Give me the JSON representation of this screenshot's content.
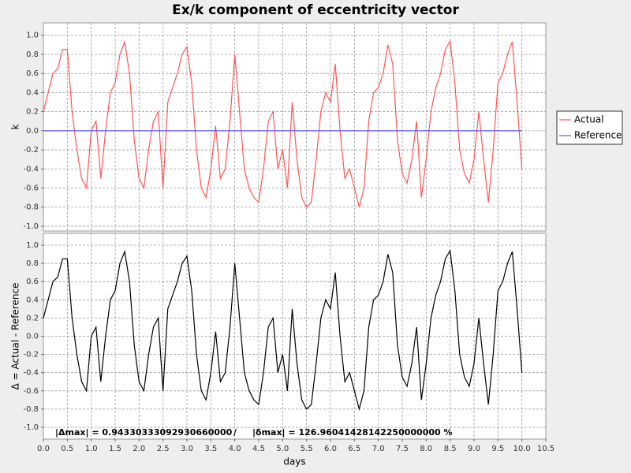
{
  "chart_data": [
    {
      "type": "line",
      "title": "Ex/k component of eccentricity vector",
      "ylabel": "k",
      "x": [
        0,
        0.1,
        0.2,
        0.3,
        0.4,
        0.5,
        0.6,
        0.7,
        0.8,
        0.9,
        1,
        1.1,
        1.2,
        1.3,
        1.4,
        1.5,
        1.6,
        1.7,
        1.8,
        1.9,
        2,
        2.1,
        2.2,
        2.3,
        2.4,
        2.5,
        2.6,
        2.7,
        2.8,
        2.9,
        3,
        3.1,
        3.2,
        3.3,
        3.4,
        3.5,
        3.6,
        3.7,
        3.8,
        3.9,
        4,
        4.1,
        4.2,
        4.3,
        4.4,
        4.5,
        4.6,
        4.7,
        4.8,
        4.9,
        5,
        5.1,
        5.2,
        5.3,
        5.4,
        5.5,
        5.6,
        5.7,
        5.8,
        5.9,
        6,
        6.1,
        6.2,
        6.3,
        6.4,
        6.5,
        6.6,
        6.7,
        6.8,
        6.9,
        7,
        7.1,
        7.2,
        7.3,
        7.4,
        7.5,
        7.6,
        7.7,
        7.8,
        7.9,
        8,
        8.1,
        8.2,
        8.3,
        8.4,
        8.5,
        8.6,
        8.7,
        8.8,
        8.9,
        9,
        9.1,
        9.2,
        9.3,
        9.4,
        9.5,
        9.6,
        9.7,
        9.8,
        9.9,
        10
      ],
      "series": [
        {
          "name": "Actual",
          "color": "#ff5555",
          "values": [
            0.2,
            0.4,
            0.6,
            0.65,
            0.85,
            0.85,
            0.2,
            -0.2,
            -0.5,
            -0.6,
            0.0,
            0.1,
            -0.5,
            0.0,
            0.4,
            0.5,
            0.8,
            0.93,
            0.6,
            -0.1,
            -0.5,
            -0.6,
            -0.2,
            0.1,
            0.2,
            -0.6,
            0.3,
            0.45,
            0.6,
            0.8,
            0.88,
            0.5,
            -0.2,
            -0.6,
            -0.7,
            -0.4,
            0.05,
            -0.5,
            -0.4,
            0.1,
            0.8,
            0.2,
            -0.4,
            -0.6,
            -0.7,
            -0.75,
            -0.4,
            0.1,
            0.2,
            -0.4,
            -0.2,
            -0.6,
            0.3,
            -0.3,
            -0.7,
            -0.8,
            -0.75,
            -0.3,
            0.2,
            0.4,
            0.3,
            0.7,
            0.0,
            -0.5,
            -0.4,
            -0.6,
            -0.8,
            -0.6,
            0.1,
            0.4,
            0.45,
            0.6,
            0.9,
            0.7,
            -0.1,
            -0.45,
            -0.55,
            -0.3,
            0.1,
            -0.7,
            -0.3,
            0.2,
            0.45,
            0.6,
            0.85,
            0.94,
            0.5,
            -0.2,
            -0.45,
            -0.55,
            -0.3,
            0.2,
            -0.3,
            -0.75,
            -0.2,
            0.5,
            0.6,
            0.8,
            0.93,
            0.3,
            -0.4
          ]
        },
        {
          "name": "Reference",
          "color": "#5555ff",
          "values": [
            0,
            0,
            0,
            0,
            0,
            0,
            0,
            0,
            0,
            0,
            0,
            0,
            0,
            0,
            0,
            0,
            0,
            0,
            0,
            0,
            0,
            0,
            0,
            0,
            0,
            0,
            0,
            0,
            0,
            0,
            0,
            0,
            0,
            0,
            0,
            0,
            0,
            0,
            0,
            0,
            0,
            0,
            0,
            0,
            0,
            0,
            0,
            0,
            0,
            0,
            0,
            0,
            0,
            0,
            0,
            0,
            0,
            0,
            0,
            0,
            0,
            0,
            0,
            0,
            0,
            0,
            0,
            0,
            0,
            0,
            0,
            0,
            0,
            0,
            0,
            0,
            0,
            0,
            0,
            0,
            0,
            0,
            0,
            0,
            0,
            0,
            0,
            0,
            0,
            0,
            0,
            0,
            0,
            0,
            0,
            0,
            0,
            0,
            0,
            0,
            0
          ]
        }
      ],
      "ylim": [
        -1.05,
        1.13
      ],
      "yticks": [
        {
          "value": -1,
          "label": "-1.0"
        },
        -0.8,
        -0.6,
        -0.4,
        -0.2,
        {
          "value": 0,
          "label": "0.0"
        },
        0.2,
        0.4,
        0.6,
        0.8,
        {
          "value": 1,
          "label": "1.0"
        }
      ],
      "grid": true,
      "legend": "right"
    },
    {
      "type": "line",
      "ylabel": "Δ = Actual - Reference",
      "xlabel": "days",
      "x": [
        0,
        0.1,
        0.2,
        0.3,
        0.4,
        0.5,
        0.6,
        0.7,
        0.8,
        0.9,
        1,
        1.1,
        1.2,
        1.3,
        1.4,
        1.5,
        1.6,
        1.7,
        1.8,
        1.9,
        2,
        2.1,
        2.2,
        2.3,
        2.4,
        2.5,
        2.6,
        2.7,
        2.8,
        2.9,
        3,
        3.1,
        3.2,
        3.3,
        3.4,
        3.5,
        3.6,
        3.7,
        3.8,
        3.9,
        4,
        4.1,
        4.2,
        4.3,
        4.4,
        4.5,
        4.6,
        4.7,
        4.8,
        4.9,
        5,
        5.1,
        5.2,
        5.3,
        5.4,
        5.5,
        5.6,
        5.7,
        5.8,
        5.9,
        6,
        6.1,
        6.2,
        6.3,
        6.4,
        6.5,
        6.6,
        6.7,
        6.8,
        6.9,
        7,
        7.1,
        7.2,
        7.3,
        7.4,
        7.5,
        7.6,
        7.7,
        7.8,
        7.9,
        8,
        8.1,
        8.2,
        8.3,
        8.4,
        8.5,
        8.6,
        8.7,
        8.8,
        8.9,
        9,
        9.1,
        9.2,
        9.3,
        9.4,
        9.5,
        9.6,
        9.7,
        9.8,
        9.9,
        10
      ],
      "series": [
        {
          "color": "#000000",
          "values": [
            0.2,
            0.4,
            0.6,
            0.65,
            0.85,
            0.85,
            0.2,
            -0.2,
            -0.5,
            -0.6,
            0.0,
            0.1,
            -0.5,
            0.0,
            0.4,
            0.5,
            0.8,
            0.93,
            0.6,
            -0.1,
            -0.5,
            -0.6,
            -0.2,
            0.1,
            0.2,
            -0.6,
            0.3,
            0.45,
            0.6,
            0.8,
            0.88,
            0.5,
            -0.2,
            -0.6,
            -0.7,
            -0.4,
            0.05,
            -0.5,
            -0.4,
            0.1,
            0.8,
            0.2,
            -0.4,
            -0.6,
            -0.7,
            -0.75,
            -0.4,
            0.1,
            0.2,
            -0.4,
            -0.2,
            -0.6,
            0.3,
            -0.3,
            -0.7,
            -0.8,
            -0.75,
            -0.3,
            0.2,
            0.4,
            0.3,
            0.7,
            0.0,
            -0.5,
            -0.4,
            -0.6,
            -0.8,
            -0.6,
            0.1,
            0.4,
            0.45,
            0.6,
            0.9,
            0.7,
            -0.1,
            -0.45,
            -0.55,
            -0.3,
            0.1,
            -0.7,
            -0.3,
            0.2,
            0.45,
            0.6,
            0.85,
            0.94,
            0.5,
            -0.2,
            -0.45,
            -0.55,
            -0.3,
            0.2,
            -0.3,
            -0.75,
            -0.2,
            0.5,
            0.6,
            0.8,
            0.93,
            0.3,
            -0.4
          ]
        }
      ],
      "xlim": [
        0,
        10.5
      ],
      "xticks": [
        {
          "value": 0,
          "label": "0.0"
        },
        0.5,
        {
          "value": 1,
          "label": "1.0"
        },
        1.5,
        {
          "value": 2,
          "label": "2.0"
        },
        2.5,
        {
          "value": 3,
          "label": "3.0"
        },
        3.5,
        {
          "value": 4,
          "label": "4.0"
        },
        4.5,
        {
          "value": 5,
          "label": "5.0"
        },
        5.5,
        {
          "value": 6,
          "label": "6.0"
        },
        6.5,
        {
          "value": 7,
          "label": "7.0"
        },
        7.5,
        {
          "value": 8,
          "label": "8.0"
        },
        8.5,
        {
          "value": 9,
          "label": "9.0"
        },
        9.5,
        {
          "value": 10,
          "label": "10.0"
        },
        10.5
      ],
      "ylim": [
        -1.13,
        1.13
      ],
      "yticks": [
        {
          "value": -1,
          "label": "-1.0"
        },
        -0.8,
        -0.6,
        -0.4,
        -0.2,
        {
          "value": 0,
          "label": "0.0"
        },
        0.2,
        0.4,
        0.6,
        0.8,
        {
          "value": 1,
          "label": "1.0"
        }
      ],
      "grid": true,
      "annotations": [
        "|Δmax| = 0.94330333092930660000",
        "/",
        "|δmax| = 126.96041428142250000000 %"
      ]
    }
  ]
}
